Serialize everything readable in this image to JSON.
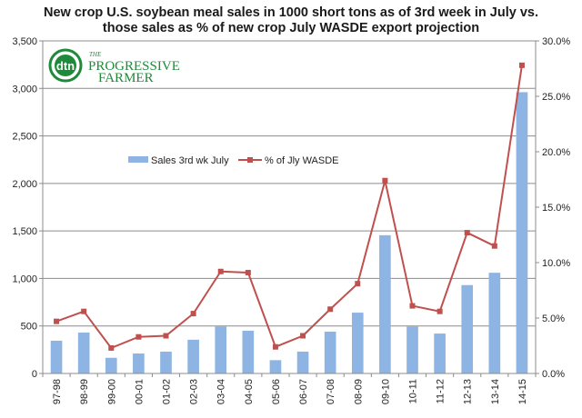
{
  "logo": {
    "dtn": "dtn",
    "the": "THE",
    "name_line1": "PROGRESSIVE",
    "name_line2": "FARMER",
    "color": "#1f8a3a"
  },
  "chart_data": {
    "type": "bar",
    "title_lines": [
      "New crop U.S. soybean meal sales in 1000 short tons as of 3rd week in July vs.",
      "those sales as % of new crop July WASDE  export projection"
    ],
    "categories": [
      "97-98",
      "98-99",
      "99-00",
      "00-01",
      "01-02",
      "02-03",
      "03-04",
      "04-05",
      "05-06",
      "06-07",
      "07-08",
      "08-09",
      "09-10",
      "10-11",
      "11-12",
      "12-13",
      "13-14",
      "14-15"
    ],
    "series": [
      {
        "name": "Sales 3rd wk July",
        "kind": "bar",
        "axis": "left",
        "color": "#8db4e2",
        "values": [
          345,
          430,
          165,
          210,
          230,
          355,
          495,
          450,
          140,
          230,
          440,
          640,
          1455,
          495,
          420,
          930,
          1060,
          2960
        ]
      },
      {
        "name": "% of Jly WASDE",
        "kind": "line",
        "axis": "right",
        "color": "#c0504d",
        "values": [
          4.7,
          5.6,
          2.3,
          3.3,
          3.4,
          5.4,
          9.2,
          9.1,
          2.4,
          3.4,
          5.8,
          8.1,
          17.4,
          6.1,
          5.6,
          12.7,
          11.5,
          27.8
        ]
      }
    ],
    "left_axis": {
      "min": 0,
      "max": 3500,
      "step": 500,
      "tick_labels": [
        "0",
        "500",
        "1,000",
        "1,500",
        "2,000",
        "2,500",
        "3,000",
        "3,500"
      ]
    },
    "right_axis": {
      "min": 0,
      "max": 30,
      "step": 5,
      "tick_labels": [
        "0.0%",
        "5.0%",
        "10.0%",
        "15.0%",
        "20.0%",
        "25.0%",
        "30.0%"
      ]
    },
    "grid": true,
    "legend_position": "top-center"
  }
}
